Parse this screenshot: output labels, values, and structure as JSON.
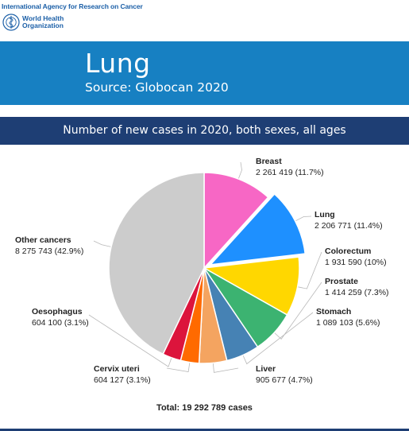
{
  "org": {
    "iarc_name": "International Agency for Research on Cancer",
    "who_name_line1": "World Health",
    "who_name_line2": "Organization"
  },
  "banner": {
    "title": "Lung",
    "subtitle": "Source: Globocan 2020"
  },
  "chart_data": {
    "type": "pie",
    "title": "Number of new cases in 2020, both sexes, all ages",
    "total_label": "Total: 19 292 789 cases",
    "highlighted": "Lung",
    "slices": [
      {
        "name": "Breast",
        "value": 2261419,
        "value_label": "2 261 419 (11.7%)",
        "percent": 11.7,
        "color": "#f767c5"
      },
      {
        "name": "Lung",
        "value": 2206771,
        "value_label": "2 206 771 (11.4%)",
        "percent": 11.4,
        "color": "#1e90ff"
      },
      {
        "name": "Colorectum",
        "value": 1931590,
        "value_label": "1 931 590 (10%)",
        "percent": 10.0,
        "color": "#ffd700"
      },
      {
        "name": "Prostate",
        "value": 1414259,
        "value_label": "1 414 259 (7.3%)",
        "percent": 7.3,
        "color": "#3cb371"
      },
      {
        "name": "Stomach",
        "value": 1089103,
        "value_label": "1 089 103 (5.6%)",
        "percent": 5.6,
        "color": "#4682b4"
      },
      {
        "name": "Liver",
        "value": 905677,
        "value_label": "905 677 (4.7%)",
        "percent": 4.7,
        "color": "#f4a460"
      },
      {
        "name": "Cervix uteri",
        "value": 604127,
        "value_label": "604 127 (3.1%)",
        "percent": 3.1,
        "color": "#ff6a00"
      },
      {
        "name": "Oesophagus",
        "value": 604100,
        "value_label": "604 100 (3.1%)",
        "percent": 3.1,
        "color": "#dc143c"
      },
      {
        "name": "Other cancers",
        "value": 8275743,
        "value_label": "8 275 743 (42.9%)",
        "percent": 42.9,
        "color": "#cccccc"
      }
    ]
  }
}
